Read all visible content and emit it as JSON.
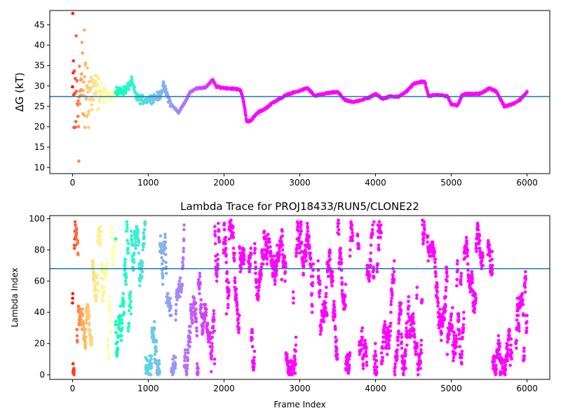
{
  "chart_data": [
    {
      "type": "scatter",
      "title": "",
      "xlabel": "",
      "ylabel": "ΔG (kT)",
      "xlim": [
        -300,
        6300
      ],
      "ylim": [
        8.5,
        48.5
      ],
      "xticks": [
        0,
        1000,
        2000,
        3000,
        4000,
        5000,
        6000
      ],
      "xtick_labels": [
        "0",
        "1000",
        "2000",
        "3000",
        "4000",
        "5000",
        "6000"
      ],
      "yticks": [
        10,
        15,
        20,
        25,
        30,
        35,
        40,
        45
      ],
      "ytick_labels": [
        "10",
        "15",
        "20",
        "25",
        "30",
        "35",
        "40",
        "45"
      ],
      "reference_line": {
        "y": 27.4,
        "color": "#1f77b4"
      },
      "colormap": "rainbow (red at frame 0 → violet at later frames)",
      "series_profile": {
        "x": [
          0,
          20,
          50,
          100,
          150,
          200,
          300,
          400,
          500,
          600,
          700,
          780,
          850,
          950,
          1050,
          1150,
          1200,
          1300,
          1400,
          1500,
          1550,
          1650,
          1750,
          1850,
          1900,
          2000,
          2150,
          2220,
          2260,
          2300,
          2350,
          2450,
          2550,
          2650,
          2750,
          2850,
          2950,
          3100,
          3200,
          3300,
          3400,
          3500,
          3600,
          3700,
          3800,
          3900,
          4000,
          4100,
          4200,
          4300,
          4400,
          4500,
          4600,
          4650,
          4700,
          4800,
          4950,
          5000,
          5080,
          5150,
          5300,
          5400,
          5500,
          5600,
          5700,
          5800,
          5900,
          6000
        ],
        "y": [
          27.5,
          26,
          28,
          28.5,
          29,
          28.5,
          28.5,
          28,
          27.5,
          28.5,
          29,
          31,
          27,
          26.5,
          27,
          27.5,
          30,
          25.5,
          23.5,
          26.5,
          28.5,
          29.5,
          29.5,
          31.5,
          29.8,
          29.5,
          29.3,
          29,
          26,
          21.2,
          21.5,
          23.5,
          24.5,
          26,
          27,
          28,
          28.5,
          29.5,
          27.5,
          28,
          28.3,
          28.5,
          26.5,
          26,
          26.5,
          27,
          28,
          26.8,
          27.5,
          27.3,
          28.5,
          30.5,
          31,
          31,
          27.5,
          27.8,
          27.5,
          25.5,
          25.2,
          28,
          28,
          28.2,
          29.5,
          28.5,
          25,
          25.5,
          26.5,
          28.5
        ],
        "early_spread": {
          "x_end": 450,
          "y_min": 10,
          "y_max": 48.5
        }
      }
    },
    {
      "type": "scatter",
      "title": "Lambda Trace for PROJ18433/RUN5/CLONE22",
      "xlabel": "Frame Index",
      "ylabel": "Lambda Index",
      "xlim": [
        -300,
        6300
      ],
      "ylim": [
        -3,
        102
      ],
      "xticks": [
        0,
        1000,
        2000,
        3000,
        4000,
        5000,
        6000
      ],
      "xtick_labels": [
        "0",
        "1000",
        "2000",
        "3000",
        "4000",
        "5000",
        "6000"
      ],
      "yticks": [
        0,
        20,
        40,
        60,
        80,
        100
      ],
      "ytick_labels": [
        "0",
        "20",
        "40",
        "60",
        "80",
        "100"
      ],
      "reference_line": {
        "y": 68,
        "color": "#1f77b4"
      },
      "colormap": "rainbow (red at frame 0 → violet at later frames)",
      "lambda_range": [
        0,
        99
      ],
      "empty_frame_bands": [
        [
          1940,
          1990
        ],
        [
          2270,
          2320
        ],
        [
          3180,
          3240
        ],
        [
          3700,
          3760
        ],
        [
          4650,
          4680
        ],
        [
          5420,
          5480
        ],
        [
          5800,
          5850
        ]
      ]
    }
  ]
}
